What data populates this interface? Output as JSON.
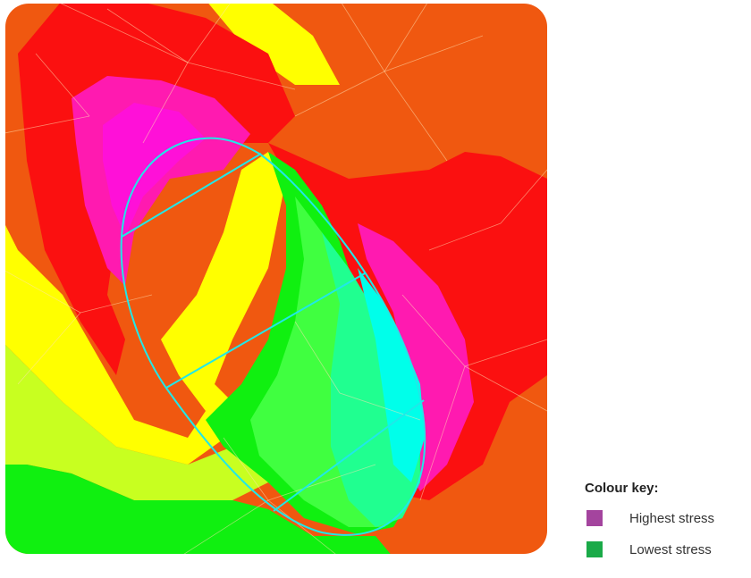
{
  "colors": {
    "background_orange": "#f05810",
    "red": "#fb1010",
    "magenta": "#ff10d8",
    "pink": "#ff1ab0",
    "yellow": "#ffff00",
    "yellow_green": "#c8ff20",
    "green": "#10f010",
    "light_green": "#40ff40",
    "mint": "#20ff90",
    "cyan": "#00ffea",
    "outline_cyan": "#20e8e8",
    "mesh_lines": "#ffe0b0"
  },
  "legend": {
    "title": "Colour key:",
    "items": [
      {
        "label": "Highest stress",
        "color": "#a4449e"
      },
      {
        "label": "Lowest stress",
        "color": "#1aaa48"
      }
    ]
  }
}
